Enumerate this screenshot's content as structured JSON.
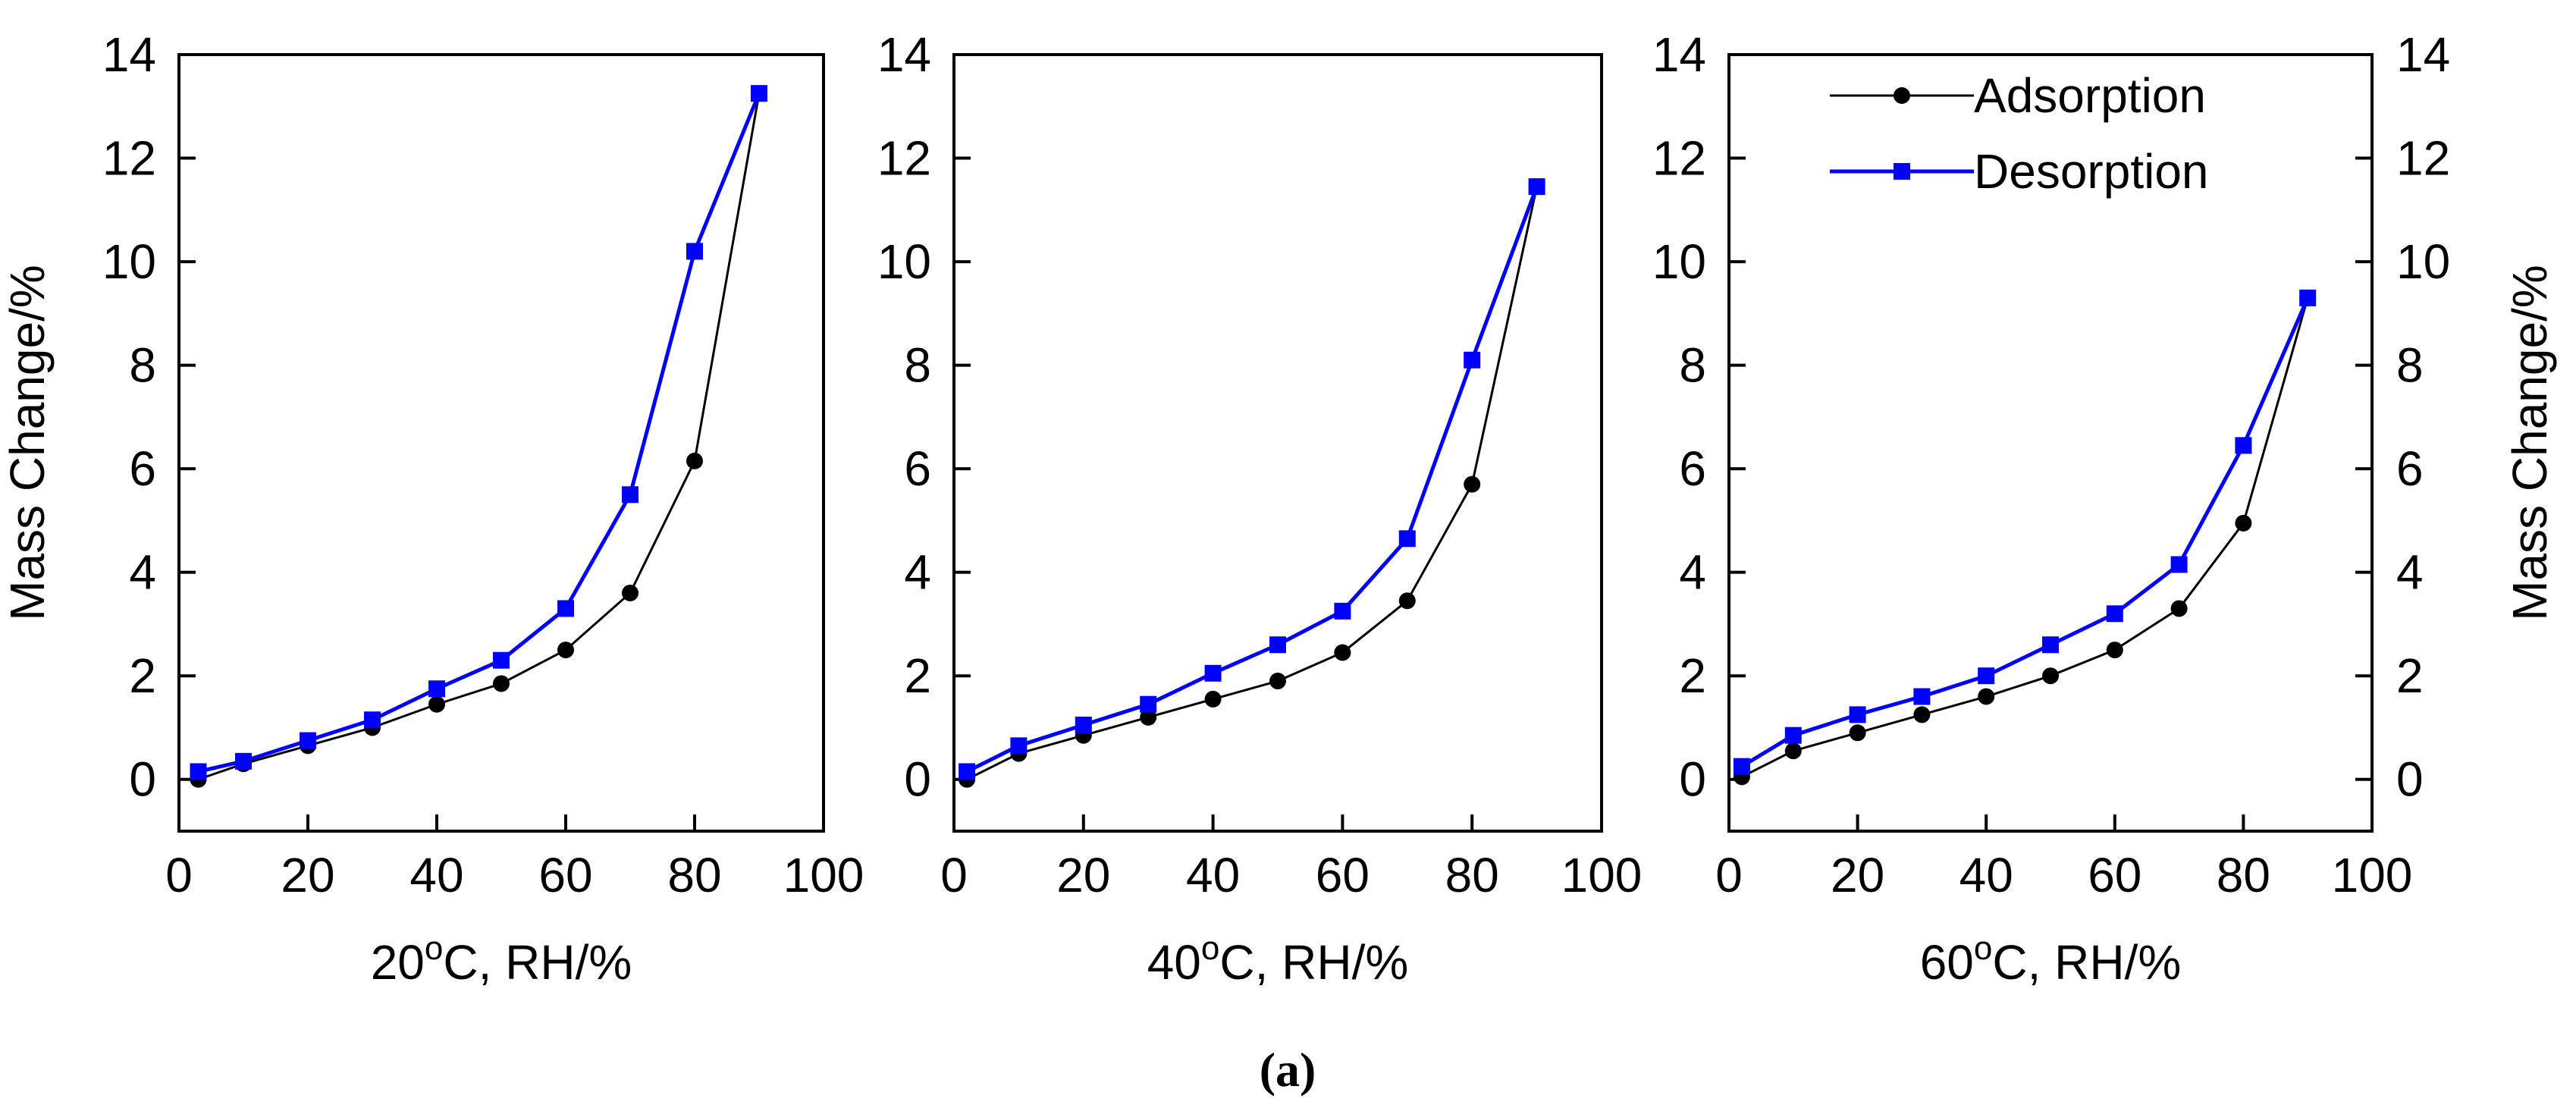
{
  "figure": {
    "caption": "(a)"
  },
  "styles": {
    "adsorption_color": "#000000",
    "desorption_color": "#0000ff",
    "axis_color": "#000000"
  },
  "legend": {
    "placement": "top-right",
    "entries": [
      {
        "label": "Adsorption",
        "marker": "circle",
        "color": "#000000"
      },
      {
        "label": "Desorption",
        "marker": "square",
        "color": "#0000ff"
      }
    ]
  },
  "chart_data": [
    {
      "type": "line",
      "xlabel_prefix": "20",
      "xlabel_superscript": "o",
      "xlabel_suffix": "C, RH/%",
      "ylabel": "Mass Change/%",
      "ylabel_side": "left",
      "xlim": [
        0,
        100
      ],
      "ylim": [
        -1,
        14
      ],
      "xticks": [
        0,
        20,
        40,
        60,
        80,
        100
      ],
      "yticks": [
        0,
        2,
        4,
        6,
        8,
        10,
        12,
        14
      ],
      "grid": false,
      "series": [
        {
          "name": "Adsorption",
          "marker": "circle",
          "color": "#000000",
          "x": [
            3,
            10,
            20,
            30,
            40,
            50,
            60,
            70,
            80,
            90
          ],
          "y": [
            0.0,
            0.3,
            0.65,
            1.0,
            1.45,
            1.85,
            2.5,
            3.6,
            6.15,
            13.25
          ]
        },
        {
          "name": "Desorption",
          "marker": "square",
          "color": "#0000ff",
          "x": [
            3,
            10,
            20,
            30,
            40,
            50,
            60,
            70,
            80,
            90
          ],
          "y": [
            0.15,
            0.35,
            0.75,
            1.15,
            1.75,
            2.3,
            3.3,
            5.5,
            10.2,
            13.25
          ]
        }
      ]
    },
    {
      "type": "line",
      "xlabel_prefix": "40",
      "xlabel_superscript": "o",
      "xlabel_suffix": "C, RH/%",
      "xlim": [
        0,
        100
      ],
      "ylim": [
        -1,
        14
      ],
      "xticks": [
        0,
        20,
        40,
        60,
        80,
        100
      ],
      "yticks": [
        0,
        2,
        4,
        6,
        8,
        10,
        12,
        14
      ],
      "grid": false,
      "series": [
        {
          "name": "Adsorption",
          "marker": "circle",
          "color": "#000000",
          "x": [
            2,
            10,
            20,
            30,
            40,
            50,
            60,
            70,
            80,
            90
          ],
          "y": [
            0.0,
            0.5,
            0.85,
            1.2,
            1.55,
            1.9,
            2.45,
            3.45,
            5.7,
            11.45
          ]
        },
        {
          "name": "Desorption",
          "marker": "square",
          "color": "#0000ff",
          "x": [
            2,
            10,
            20,
            30,
            40,
            50,
            60,
            70,
            80,
            90
          ],
          "y": [
            0.15,
            0.65,
            1.05,
            1.45,
            2.05,
            2.6,
            3.25,
            4.65,
            8.1,
            11.45
          ]
        }
      ]
    },
    {
      "type": "line",
      "xlabel_prefix": "60",
      "xlabel_superscript": "o",
      "xlabel_suffix": "C, RH/%",
      "ylabel": "Mass Change/%",
      "ylabel_side": "right",
      "xlim": [
        0,
        100
      ],
      "ylim": [
        -1,
        14
      ],
      "xticks": [
        0,
        20,
        40,
        60,
        80,
        100
      ],
      "yticks": [
        0,
        2,
        4,
        6,
        8,
        10,
        12,
        14
      ],
      "grid": false,
      "series": [
        {
          "name": "Adsorption",
          "marker": "circle",
          "color": "#000000",
          "x": [
            2,
            10,
            20,
            30,
            40,
            50,
            60,
            70,
            80,
            90
          ],
          "y": [
            0.05,
            0.55,
            0.9,
            1.25,
            1.6,
            2.0,
            2.5,
            3.3,
            4.95,
            9.3
          ]
        },
        {
          "name": "Desorption",
          "marker": "square",
          "color": "#0000ff",
          "x": [
            2,
            10,
            20,
            30,
            40,
            50,
            60,
            70,
            80,
            90
          ],
          "y": [
            0.25,
            0.85,
            1.25,
            1.6,
            2.0,
            2.6,
            3.2,
            4.15,
            6.45,
            9.3
          ]
        }
      ]
    }
  ]
}
